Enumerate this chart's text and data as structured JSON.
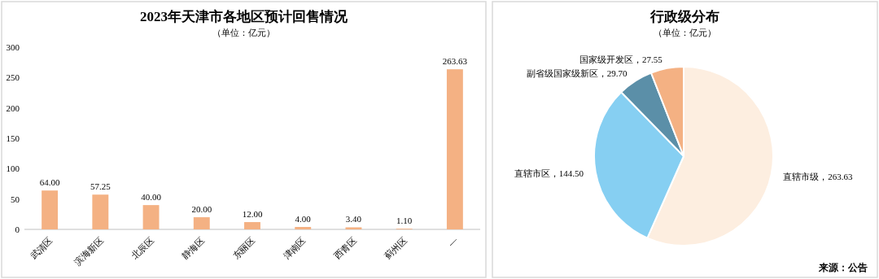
{
  "chart_data": [
    {
      "type": "bar",
      "title": "2023年天津市各地区预计回售情况",
      "subtitle": "（单位：亿元）",
      "categories": [
        "武清区",
        "滨海新区",
        "北辰区",
        "静海区",
        "东丽区",
        "津南区",
        "西青区",
        "蓟州区",
        "—"
      ],
      "values": [
        64,
        57.25,
        40,
        20,
        12,
        4,
        3.4,
        1.1,
        263.63
      ],
      "value_labels": [
        "64.00",
        "57.25",
        "40.00",
        "20.00",
        "12.00",
        "4.00",
        "3.40",
        "1.10",
        "263.63"
      ],
      "color": "#f4b183",
      "ylim": [
        0,
        300
      ],
      "yticks": [
        0,
        50,
        100,
        150,
        200,
        250,
        300
      ]
    },
    {
      "type": "pie",
      "title": "行政级分布",
      "subtitle": "（单位：亿元）",
      "categories": [
        "直辖市级",
        "直辖市区",
        "副省级国家级新区",
        "国家级开发区"
      ],
      "values": [
        263.63,
        144.5,
        29.7,
        27.55
      ],
      "value_labels": [
        "263.63",
        "144.50",
        "29.70",
        "27.55"
      ],
      "colors": [
        "#fdeee0",
        "#86cff2",
        "#5b8fa8",
        "#f4b183"
      ],
      "annotations": [
        "来源：公告"
      ]
    }
  ]
}
